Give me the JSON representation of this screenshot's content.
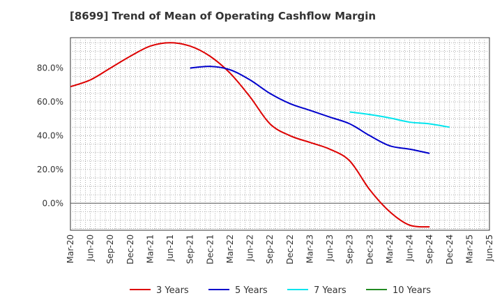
{
  "chart_data": {
    "type": "line",
    "title": "[8699]  Trend of Mean of Operating Cashflow Margin",
    "xlabel": "",
    "ylabel": "",
    "ylim": [
      -16,
      98
    ],
    "y_ticks": [
      0,
      20,
      40,
      60,
      80
    ],
    "y_tick_labels": [
      "0.0%",
      "20.0%",
      "40.0%",
      "60.0%",
      "80.0%"
    ],
    "x_tick_labels": [
      "Mar-20",
      "Jun-20",
      "Sep-20",
      "Dec-20",
      "Mar-21",
      "Jun-21",
      "Sep-21",
      "Dec-21",
      "Mar-22",
      "Jun-22",
      "Sep-22",
      "Dec-22",
      "Mar-23",
      "Jun-23",
      "Sep-23",
      "Dec-23",
      "Mar-24",
      "Jun-24",
      "Sep-24",
      "Dec-24",
      "Mar-25",
      "Jun-25"
    ],
    "grid": true,
    "legend_position": "bottom",
    "series": [
      {
        "name": "3 Years",
        "color": "#dd0000",
        "start_index": 0,
        "values": [
          69,
          73,
          80,
          87,
          93,
          95,
          93,
          87,
          77,
          63,
          47,
          40,
          36,
          32,
          25,
          8,
          -5,
          -13,
          -14
        ]
      },
      {
        "name": "5 Years",
        "color": "#0000cc",
        "start_index": 6,
        "values": [
          80,
          81,
          79,
          73,
          65,
          59,
          55,
          51,
          47,
          40,
          34,
          32,
          29.5
        ]
      },
      {
        "name": "7 Years",
        "color": "#00e5ee",
        "start_index": 14,
        "values": [
          54,
          52.5,
          50.5,
          48,
          47,
          45
        ]
      },
      {
        "name": "10 Years",
        "color": "#228b22",
        "start_index": 0,
        "values": []
      }
    ]
  }
}
